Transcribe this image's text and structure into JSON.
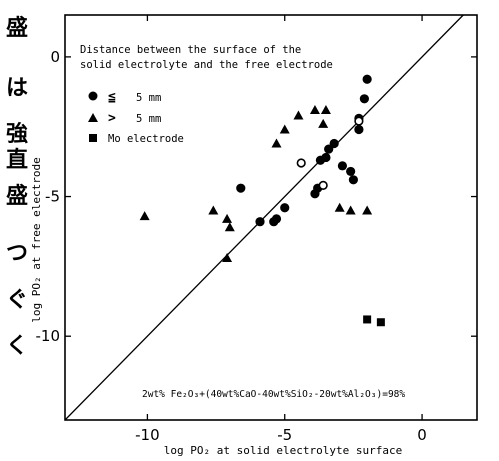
{
  "side_text": [
    "盛",
    "は",
    "強",
    "直",
    "盛",
    "つ",
    "ぐ",
    "く"
  ],
  "chart_data": {
    "type": "scatter",
    "xlabel": "log PO₂ at solid electrolyte surface",
    "ylabel": "log PO₂ at free electrode",
    "xlim": [
      -13,
      2
    ],
    "ylim": [
      -13,
      1.5
    ],
    "x_ticks": [
      {
        "value": -10,
        "label": "-10"
      },
      {
        "value": -5,
        "label": "-5"
      },
      {
        "value": 0,
        "label": "0"
      }
    ],
    "y_ticks": [
      {
        "value": 0,
        "label": "0"
      },
      {
        "value": -5,
        "label": "-5"
      },
      {
        "value": -10,
        "label": "-10"
      }
    ],
    "reference_line": "y = x",
    "legend": {
      "placement": "top-left",
      "title_lines": [
        "Distance between the surface of the",
        "solid electrolyte and the free electrode"
      ],
      "entries": [
        {
          "symbol": "≦",
          "text": "5 mm"
        },
        {
          "symbol": ">",
          "text": "5 mm"
        },
        {
          "symbol": "",
          "text": "Mo electrode"
        }
      ]
    },
    "annotation": "2wt% Fe₂O₃+(40wt%CaO-40wt%SiO₂-20wt%Al₂O₃)=98%",
    "series": [
      {
        "marker": "filled-circle",
        "points": [
          [
            -2.0,
            -0.8
          ],
          [
            -2.1,
            -1.5
          ],
          [
            -2.3,
            -2.2
          ],
          [
            -2.3,
            -2.6
          ],
          [
            -2.6,
            -4.1
          ],
          [
            -2.5,
            -4.4
          ],
          [
            -2.9,
            -3.9
          ],
          [
            -3.2,
            -3.1
          ],
          [
            -3.4,
            -3.3
          ],
          [
            -3.5,
            -3.6
          ],
          [
            -3.7,
            -3.7
          ],
          [
            -3.8,
            -4.7
          ],
          [
            -3.9,
            -4.9
          ],
          [
            -5.0,
            -5.4
          ],
          [
            -5.3,
            -5.8
          ],
          [
            -5.4,
            -5.9
          ],
          [
            -5.9,
            -5.9
          ],
          [
            -6.6,
            -4.7
          ]
        ]
      },
      {
        "marker": "filled-triangle",
        "points": [
          [
            -2.0,
            -5.5
          ],
          [
            -2.6,
            -5.5
          ],
          [
            -3.0,
            -5.4
          ],
          [
            -3.5,
            -1.9
          ],
          [
            -3.6,
            -2.4
          ],
          [
            -3.9,
            -1.9
          ],
          [
            -4.5,
            -2.1
          ],
          [
            -5.0,
            -2.6
          ],
          [
            -5.3,
            -3.1
          ],
          [
            -7.0,
            -6.1
          ],
          [
            -7.1,
            -5.8
          ],
          [
            -7.6,
            -5.5
          ],
          [
            -7.1,
            -7.2
          ],
          [
            -10.1,
            -5.7
          ]
        ]
      },
      {
        "marker": "open-circle",
        "points": [
          [
            -2.3,
            -2.3
          ],
          [
            -3.6,
            -4.6
          ],
          [
            -4.4,
            -3.8
          ]
        ]
      },
      {
        "marker": "filled-square",
        "points": [
          [
            -2.0,
            -9.4
          ],
          [
            -1.5,
            -9.5
          ]
        ]
      }
    ]
  }
}
